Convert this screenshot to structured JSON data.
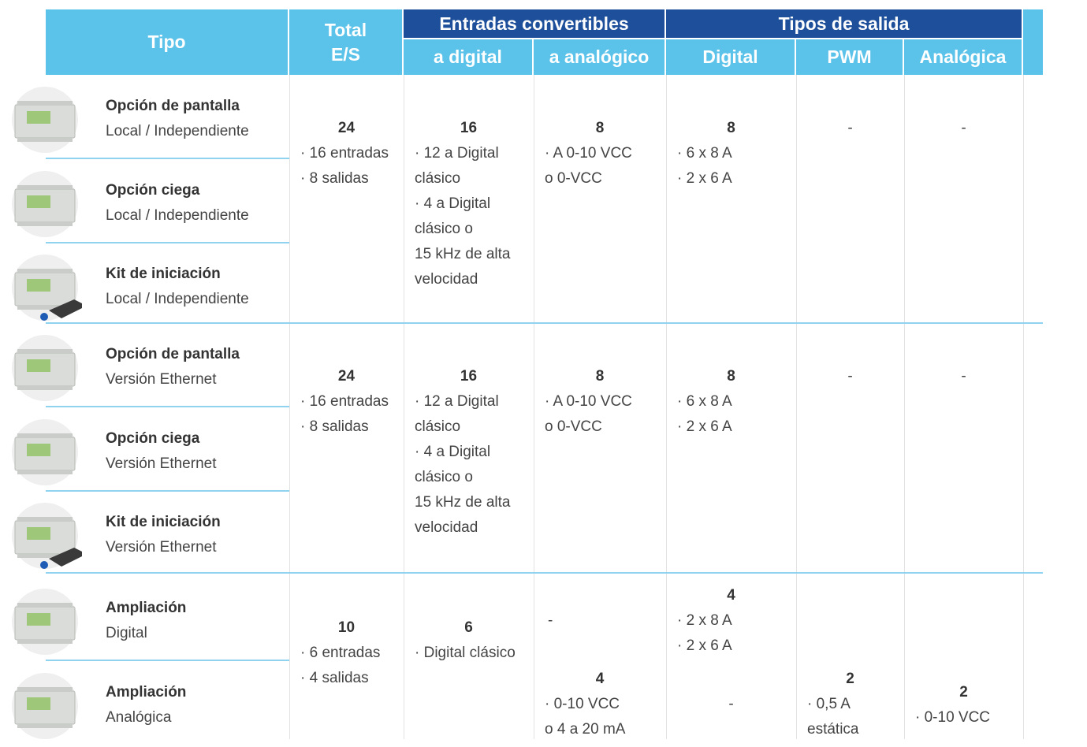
{
  "header": {
    "tipo": "Tipo",
    "total": [
      "Total",
      "E/S"
    ],
    "entradas": "Entradas convertibles",
    "a_digital": "a digital",
    "a_analogico": "a analógico",
    "salidas": "Tipos de salida",
    "digital": "Digital",
    "pwm": "PWM",
    "analogica": "Analógica"
  },
  "groups": [
    {
      "products": [
        {
          "name": "Opción de pantalla",
          "desc": "Local / Independiente"
        },
        {
          "name": "Opción ciega",
          "desc": "Local / Independiente"
        },
        {
          "name": "Kit de iniciación",
          "desc": "Local / Independiente"
        }
      ],
      "total": {
        "value": "24",
        "lines": [
          "· 16 entradas",
          "· 8 salidas"
        ]
      },
      "a_digital": {
        "value": "16",
        "lines": [
          "· 12 a Digital",
          "clásico",
          "· 4 a Digital",
          "clásico o",
          "15 kHz de alta",
          "velocidad"
        ]
      },
      "a_analogico": {
        "value": "8",
        "lines": [
          "· A 0-10 VCC",
          "o 0-VCC"
        ]
      },
      "digital": {
        "value": "8",
        "lines": [
          "· 6 x 8 A",
          "· 2 x 6 A"
        ]
      },
      "pwm": {
        "dash": "-"
      },
      "analogica": {
        "dash": "-"
      }
    },
    {
      "products": [
        {
          "name": "Opción de pantalla",
          "desc": "Versión Ethernet"
        },
        {
          "name": "Opción ciega",
          "desc": "Versión Ethernet"
        },
        {
          "name": "Kit de iniciación",
          "desc": "Versión Ethernet"
        }
      ],
      "total": {
        "value": "24",
        "lines": [
          "· 16 entradas",
          "· 8 salidas"
        ]
      },
      "a_digital": {
        "value": "16",
        "lines": [
          "· 12 a Digital",
          "clásico",
          "· 4 a Digital",
          "clásico o",
          "15 kHz de alta",
          "velocidad"
        ]
      },
      "a_analogico": {
        "value": "8",
        "lines": [
          "· A 0-10 VCC",
          "o 0-VCC"
        ]
      },
      "digital": {
        "value": "8",
        "lines": [
          "· 6 x 8 A",
          "· 2 x 6 A"
        ]
      },
      "pwm": {
        "dash": "-"
      },
      "analogica": {
        "dash": "-"
      }
    },
    {
      "products": [
        {
          "name": "Ampliación",
          "desc": "Digital"
        },
        {
          "name": "Ampliación",
          "desc": "Analógica"
        }
      ],
      "total": {
        "value": "10",
        "lines": [
          "· 6 entradas",
          "· 4 salidas"
        ]
      },
      "a_digital": {
        "value": "6",
        "lines": [
          "· Digital clásico"
        ]
      },
      "rows": [
        {
          "a_analogico": {
            "dash": "-"
          },
          "digital": {
            "value": "4",
            "lines": [
              "· 2 x 8 A",
              "· 2 x 6 A"
            ]
          }
        },
        {
          "a_analogico": {
            "value": "4",
            "lines": [
              "· 0-10 VCC",
              "o 4 a 20 mA"
            ]
          },
          "digital": {
            "dash": "-"
          },
          "pwm": {
            "value": "2",
            "lines": [
              "· 0,5 A",
              "estática"
            ]
          },
          "analogica": {
            "value": "2",
            "lines": [
              "· 0-10 VCC"
            ]
          }
        }
      ]
    }
  ]
}
